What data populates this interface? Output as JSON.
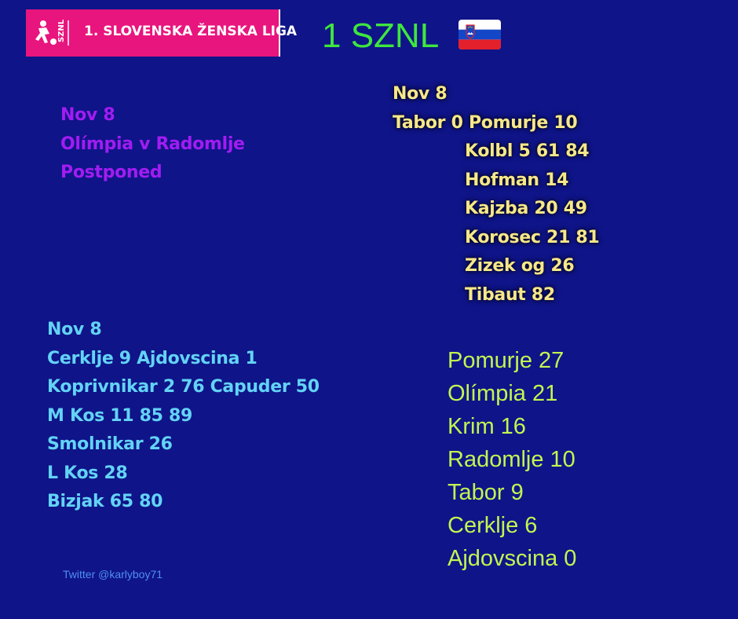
{
  "header": {
    "logo_text": "1. SLOVENSKA ŽENSKA LIGA",
    "logo_emblem_text": "SZNL",
    "title": "1 SZNL",
    "flag": "slovenia-flag-icon"
  },
  "matches": {
    "olimpia_radomlje": {
      "lines": [
        "Nov 8",
        "Olímpia v Radomlje",
        "Postponed"
      ]
    },
    "tabor_pomurje": {
      "date": "Nov 8",
      "result": "Tabor 0 Pomurje 10",
      "scorers": [
        "Kolbl 5 61 84",
        "Hofman 14",
        "Kajzba 20 49",
        "Korosec 21 81",
        "Zizek og 26",
        "Tibaut 82"
      ]
    },
    "cerklje_ajdovscina": {
      "lines": [
        "Nov 8",
        "Cerklje 9 Ajdovscina 1",
        "Koprivnikar 2 76 Capuder 50",
        "M Kos 11 85 89",
        "Smolnikar 26",
        "L Kos 28",
        "Bizjak 65 80"
      ]
    }
  },
  "standings": [
    "Pomurje 27",
    "Olímpia 21",
    "Krim 16",
    "Radomlje 10",
    "Tabor 9",
    "Cerklje 6",
    "Ajdovscina 0"
  ],
  "footer": {
    "twitter": "Twitter @karlyboy71"
  },
  "colors": {
    "background": "#0f1488",
    "logo_pink": "#e8157e",
    "title_green": "#3ee63e",
    "olimpia_purple": "#a21cf2",
    "tabor_yellow": "#f6e78a",
    "cerklje_cyan": "#63d3f6",
    "standings_lime": "#c2f551",
    "twitter_blue": "#4f8ff5"
  }
}
